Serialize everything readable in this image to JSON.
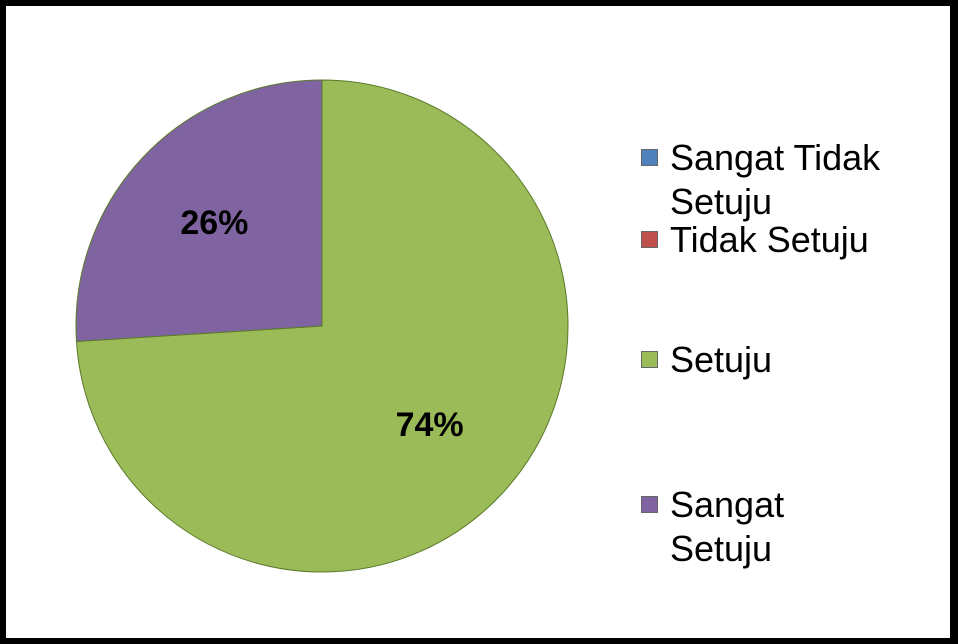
{
  "chart_data": {
    "type": "pie",
    "categories": [
      "Sangat Tidak Setuju",
      "Tidak Setuju",
      "Setuju",
      "Sangat Setuju"
    ],
    "values": [
      0,
      0,
      74,
      26
    ],
    "value_labels": [
      null,
      null,
      "74%",
      "26%"
    ],
    "colors": [
      "#4f81bd",
      "#c0504d",
      "#9bbb59",
      "#8064a2"
    ],
    "legend": "right"
  }
}
